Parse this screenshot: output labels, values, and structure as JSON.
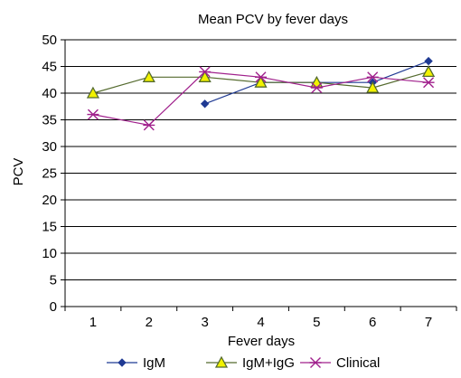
{
  "chart_data": {
    "type": "line",
    "title": "Mean PCV by fever days",
    "xlabel": "Fever days",
    "ylabel": "PCV",
    "categories": [
      "1",
      "2",
      "3",
      "4",
      "5",
      "6",
      "7"
    ],
    "ylim": [
      0,
      50
    ],
    "yticks": [
      "0",
      "5",
      "10",
      "15",
      "20",
      "25",
      "30",
      "35",
      "40",
      "45",
      "50"
    ],
    "grid": true,
    "legend_position": "bottom",
    "series": [
      {
        "name": "IgM",
        "marker": "diamond",
        "color": "#1f3a93",
        "values": [
          null,
          null,
          38,
          42,
          42,
          42,
          46
        ]
      },
      {
        "name": "IgM+IgG",
        "marker": "triangle",
        "color": "#556b2f",
        "markerFill": "#f2f200",
        "values": [
          40,
          43,
          43,
          42,
          42,
          41,
          44
        ]
      },
      {
        "name": "Clinical",
        "marker": "asterisk",
        "color": "#a0208c",
        "values": [
          36,
          34,
          44,
          43,
          41,
          43,
          42
        ]
      }
    ]
  }
}
